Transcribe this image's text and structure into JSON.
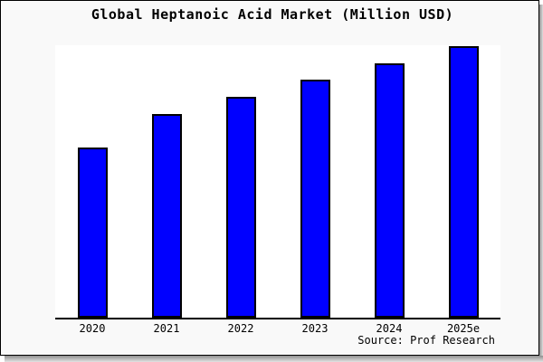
{
  "title": "Global Heptanoic Acid Market (Million USD)",
  "source": "Source: Prof Research",
  "colors": {
    "page_background": "#f9f9f9",
    "plot_background": "#ffffff",
    "bar_fill": "#0000ff",
    "bar_edge": "#000000",
    "axis_line": "#000000",
    "text": "#000000",
    "frame_border": "#000000",
    "shadow": "#8f8f8f"
  },
  "chart_data": {
    "type": "bar",
    "title": "Global Heptanoic Acid Market (Million USD)",
    "categories": [
      "2020",
      "2021",
      "2022",
      "2023",
      "2024",
      "2025e"
    ],
    "values": [
      188,
      225,
      244,
      263,
      281,
      300
    ],
    "xlabel": "",
    "ylabel": "",
    "ylim": [
      0,
      301
    ],
    "units": "relative height (no y-axis ticks shown in figure)",
    "grid": false,
    "legend": "none",
    "bar_color": "#0000ff",
    "bar_edge_color": "#000000",
    "source": "Source: Prof Research"
  }
}
